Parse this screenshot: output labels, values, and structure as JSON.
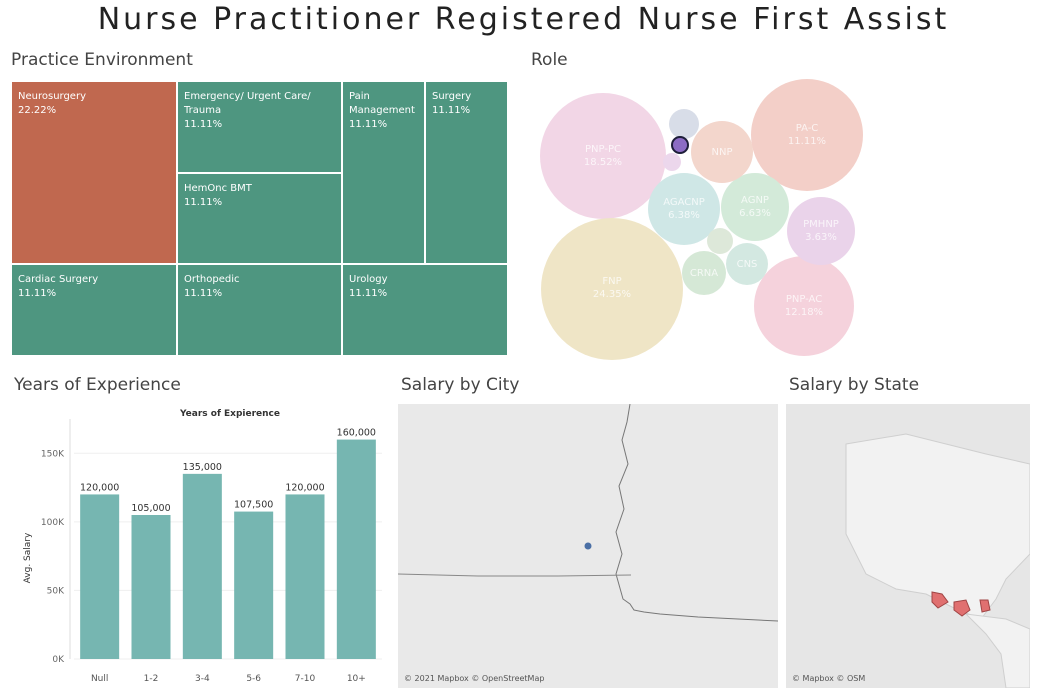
{
  "title": "Nurse Practitioner Registered Nurse First Assist",
  "treemap": {
    "heading": "Practice Environment",
    "tiles": [
      {
        "label": "Neurosurgery",
        "pct": "22.22%",
        "color": "#c0684f"
      },
      {
        "label": "Emergency/ Urgent Care/ Trauma",
        "pct": "11.11%",
        "color": "#4e9680"
      },
      {
        "label": "Pain Management",
        "pct": "11.11%",
        "color": "#4e9680"
      },
      {
        "label": "Surgery",
        "pct": "11.11%",
        "color": "#4e9680"
      },
      {
        "label": "HemOnc BMT",
        "pct": "11.11%",
        "color": "#4e9680"
      },
      {
        "label": "Cardiac Surgery",
        "pct": "11.11%",
        "color": "#4e9680"
      },
      {
        "label": "Orthopedic",
        "pct": "11.11%",
        "color": "#4e9680"
      },
      {
        "label": "Urology",
        "pct": "11.11%",
        "color": "#4e9680"
      }
    ]
  },
  "role": {
    "heading": "Role",
    "bubbles": [
      {
        "label": "PNP-PC",
        "pct": "18.52%",
        "color": "#f2d6e6"
      },
      {
        "label": "PA-C",
        "pct": "11.11%",
        "color": "#f3cfc8"
      },
      {
        "label": "FNP",
        "pct": "24.35%",
        "color": "#efe5c6"
      },
      {
        "label": "PNP-AC",
        "pct": "12.18%",
        "color": "#f5d2dc"
      },
      {
        "label": "AGACNP",
        "pct": "6.38%",
        "color": "#cfe7e6"
      },
      {
        "label": "AGNP",
        "pct": "6.63%",
        "color": "#d3ead9"
      },
      {
        "label": "PMHNP",
        "pct": "3.63%",
        "color": "#ead3ea"
      },
      {
        "label": "NNP",
        "pct": "",
        "color": "#f3d6cc"
      },
      {
        "label": "CRNA",
        "pct": "",
        "color": "#d5e8d6"
      },
      {
        "label": "CNS",
        "pct": "",
        "color": "#d3e8e1"
      },
      {
        "label": "",
        "pct": "",
        "color": "#d8dde8"
      },
      {
        "label": "",
        "pct": "",
        "color": "#dde8d9"
      },
      {
        "label": "",
        "pct": "",
        "color": "#ecd7ec"
      },
      {
        "label": "",
        "pct": "",
        "color": "#8c6cc4"
      }
    ]
  },
  "years": {
    "heading": "Years of Experience",
    "chart_data": {
      "type": "bar",
      "title": "Years of Expierence",
      "ylabel": "Avg. Salary",
      "xlabel": "",
      "categories": [
        "Null",
        "1-2",
        "3-4",
        "5-6",
        "7-10",
        "10+"
      ],
      "values": [
        120000,
        105000,
        135000,
        107500,
        120000,
        160000
      ],
      "value_labels": [
        "120,000",
        "105,000",
        "135,000",
        "107,500",
        "120,000",
        "160,000"
      ],
      "ylim": [
        0,
        175000
      ],
      "yticks": [
        0,
        50000,
        100000,
        150000
      ],
      "ytick_labels": [
        "0K",
        "50K",
        "100K",
        "150K"
      ],
      "color": "#76b6b1"
    }
  },
  "city": {
    "heading": "Salary by City",
    "credit": "© 2021 Mapbox © OpenStreetMap",
    "dot_color": "#4a6fa5"
  },
  "state": {
    "heading": "Salary by State",
    "credit": "© Mapbox © OSM",
    "mark_color": "#e07070"
  }
}
